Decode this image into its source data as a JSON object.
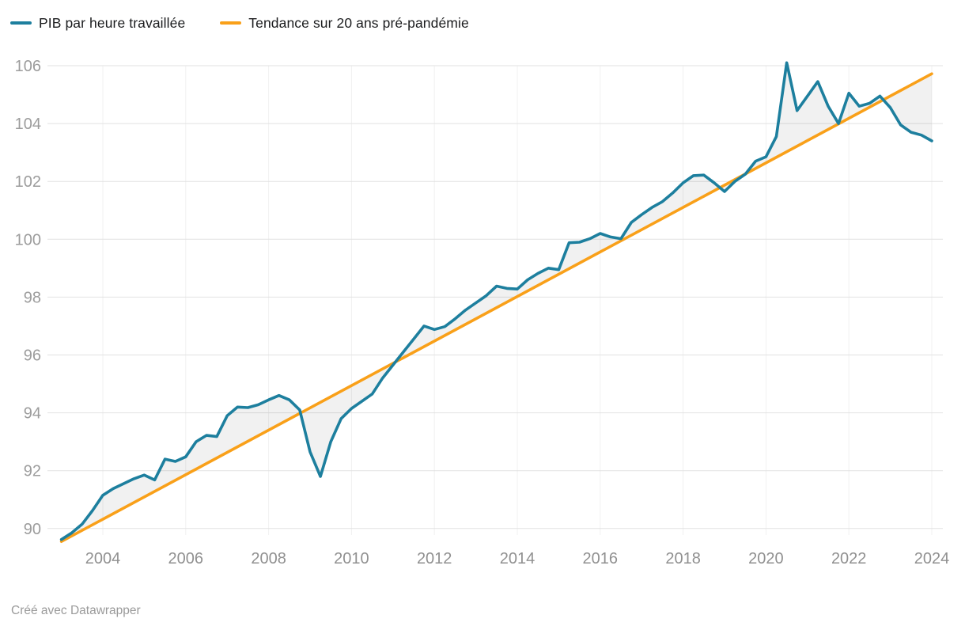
{
  "legend": {
    "items": [
      {
        "id": "pib",
        "label": "PIB par heure travaillée",
        "color": "#1d7f9e"
      },
      {
        "id": "trend",
        "label": "Tendance sur 20 ans pré-pandémie",
        "color": "#f9a019"
      }
    ]
  },
  "footer": {
    "credit": "Créé avec Datawrapper"
  },
  "chart_data": {
    "type": "line",
    "title": "",
    "xlabel": "",
    "ylabel": "",
    "x_axis": {
      "ticks": [
        2004,
        2006,
        2008,
        2010,
        2012,
        2014,
        2016,
        2018,
        2020,
        2022,
        2024
      ],
      "range": [
        2002.7,
        2024.35
      ],
      "gridlines": true
    },
    "y_axis": {
      "ticks": [
        90,
        92,
        94,
        96,
        98,
        100,
        102,
        104,
        106
      ],
      "range": [
        89.4,
        106.4
      ],
      "gridlines": true
    },
    "area_between_series": true,
    "series": [
      {
        "name": "PIB par heure travaillée",
        "color": "#1d7f9e",
        "x_start": 2003.0,
        "x_step": 0.25,
        "values": [
          89.62,
          89.85,
          90.15,
          90.62,
          91.15,
          91.38,
          91.55,
          91.72,
          91.85,
          91.68,
          92.4,
          92.32,
          92.48,
          93.0,
          93.22,
          93.18,
          93.9,
          94.2,
          94.18,
          94.28,
          94.45,
          94.6,
          94.45,
          94.1,
          92.65,
          91.8,
          93.0,
          93.8,
          94.15,
          94.4,
          94.65,
          95.2,
          95.65,
          96.1,
          96.55,
          97.0,
          96.88,
          96.98,
          97.25,
          97.55,
          97.8,
          98.05,
          98.38,
          98.3,
          98.28,
          98.6,
          98.82,
          99.0,
          98.95,
          99.88,
          99.9,
          100.02,
          100.2,
          100.08,
          100.02,
          100.58,
          100.85,
          101.1,
          101.3,
          101.6,
          101.95,
          102.2,
          102.22,
          101.95,
          101.65,
          102.0,
          102.25,
          102.7,
          102.85,
          103.55,
          106.1,
          104.45,
          104.95,
          105.45,
          104.6,
          104.0,
          105.05,
          104.6,
          104.7,
          104.95,
          104.55,
          103.95,
          103.7,
          103.6,
          103.4
        ]
      },
      {
        "name": "Tendance sur 20 ans pré-pandémie",
        "color": "#f9a019",
        "shape": "linear",
        "points": [
          [
            2003.0,
            89.55
          ],
          [
            2024.0,
            105.72
          ]
        ]
      }
    ]
  }
}
